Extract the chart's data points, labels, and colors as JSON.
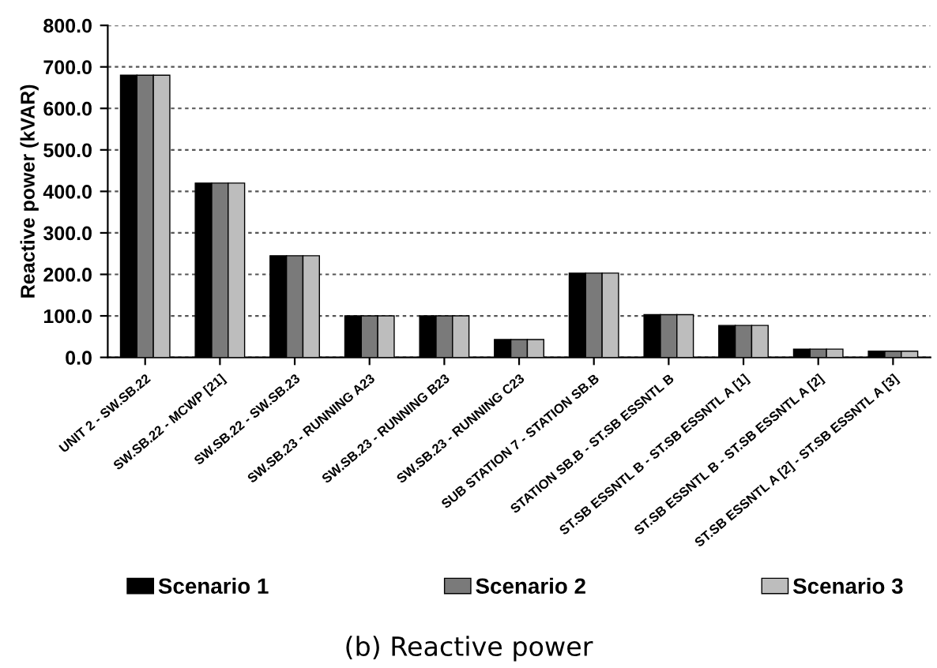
{
  "chart_data": {
    "type": "bar",
    "title": "(b) Reactive power",
    "ylabel": "Reactive power (kVAR)",
    "categories": [
      "UNIT 2 - SW.SB.22",
      "SW.SB.22 - MCWP [21]",
      "SW.SB.22 - SW.SB.23",
      "SW.SB.23 - RUNNING A23",
      "SW.SB.23 - RUNNING B23",
      "SW.SB.23 - RUNNING C23",
      "SUB STATION 7 - STATION SB.B",
      "STATION SB.B - ST.SB ESSNTL B",
      "ST.SB ESSNTL B - ST.SB ESSNTL A [1]",
      "ST.SB ESSNTL B - ST.SB ESSNTL A [2]",
      "ST.SB ESSNTL A [2] - ST.SB ESSNTL A [3]"
    ],
    "series": [
      {
        "name": "Scenario 1",
        "color": "#000000",
        "values": [
          680,
          420,
          245,
          100,
          100,
          43,
          203,
          103,
          77,
          20,
          15
        ]
      },
      {
        "name": "Scenario 2",
        "color": "#7a7a7a",
        "values": [
          680,
          420,
          245,
          100,
          100,
          43,
          203,
          103,
          77,
          20,
          15
        ]
      },
      {
        "name": "Scenario 3",
        "color": "#bdbdbd",
        "values": [
          680,
          420,
          245,
          100,
          100,
          43,
          203,
          103,
          77,
          20,
          15
        ]
      }
    ],
    "ylim": [
      0,
      800
    ],
    "yticks": [
      {
        "value": 0,
        "label": "0.0"
      },
      {
        "value": 100,
        "label": "100.0"
      },
      {
        "value": 200,
        "label": "200.0"
      },
      {
        "value": 300,
        "label": "300.0"
      },
      {
        "value": 400,
        "label": "400.0"
      },
      {
        "value": 500,
        "label": "500.0"
      },
      {
        "value": 600,
        "label": "600.0"
      },
      {
        "value": 700,
        "label": "700.0"
      },
      {
        "value": 800,
        "label": "800.0"
      }
    ],
    "grid": "y",
    "legend": "bottom"
  }
}
